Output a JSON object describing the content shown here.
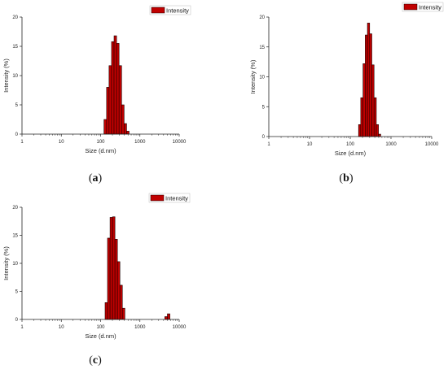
{
  "chart_data": [
    {
      "type": "bar",
      "panel_label_open": "(",
      "panel_label_letter": "a",
      "panel_label_close": ")",
      "xlabel": "Size (d.nm)",
      "ylabel": "Intensity (%)",
      "xscale": "log",
      "xlim": [
        1,
        10000
      ],
      "ylim": [
        0,
        20
      ],
      "xticks": [
        1,
        10,
        100,
        1000,
        10000
      ],
      "xtick_labels": [
        "1",
        "10",
        "100",
        "1000",
        "10000"
      ],
      "yticks": [
        0,
        5,
        10,
        15,
        20
      ],
      "ytick_labels": [
        "0",
        "5",
        "10",
        "15",
        "20"
      ],
      "legend": "top-right",
      "grid": false,
      "series": [
        {
          "name": "Intensity",
          "color": "#c00000",
          "bins": [
            {
              "x0": 122,
              "x1": 142,
              "y": 2.5
            },
            {
              "x0": 142,
              "x1": 164,
              "y": 8.0
            },
            {
              "x0": 164,
              "x1": 190,
              "y": 11.7
            },
            {
              "x0": 190,
              "x1": 220,
              "y": 15.8
            },
            {
              "x0": 220,
              "x1": 255,
              "y": 16.8
            },
            {
              "x0": 255,
              "x1": 295,
              "y": 15.5
            },
            {
              "x0": 295,
              "x1": 342,
              "y": 11.7
            },
            {
              "x0": 342,
              "x1": 396,
              "y": 5.0
            },
            {
              "x0": 396,
              "x1": 459,
              "y": 1.8
            },
            {
              "x0": 459,
              "x1": 531,
              "y": 0.5
            }
          ]
        }
      ]
    },
    {
      "type": "bar",
      "panel_label_open": "(",
      "panel_label_letter": "b",
      "panel_label_close": ")",
      "xlabel": "Size (d.nm)",
      "ylabel": "Intensity (%)",
      "xscale": "log",
      "xlim": [
        1,
        10000
      ],
      "ylim": [
        0,
        20
      ],
      "xticks": [
        1,
        10,
        100,
        1000,
        10000
      ],
      "xtick_labels": [
        "1",
        "10",
        "100",
        "1000",
        "10000"
      ],
      "yticks": [
        0,
        5,
        10,
        15,
        20
      ],
      "ytick_labels": [
        "0",
        "5",
        "10",
        "15",
        "20"
      ],
      "legend": "top-right",
      "grid": false,
      "series": [
        {
          "name": "Intensity",
          "color": "#c00000",
          "bins": [
            {
              "x0": 160,
              "x1": 181,
              "y": 2.0
            },
            {
              "x0": 181,
              "x1": 206,
              "y": 6.5
            },
            {
              "x0": 206,
              "x1": 233,
              "y": 12.2
            },
            {
              "x0": 233,
              "x1": 264,
              "y": 17.0
            },
            {
              "x0": 264,
              "x1": 299,
              "y": 19.0
            },
            {
              "x0": 299,
              "x1": 339,
              "y": 17.2
            },
            {
              "x0": 339,
              "x1": 384,
              "y": 12.0
            },
            {
              "x0": 384,
              "x1": 436,
              "y": 6.5
            },
            {
              "x0": 436,
              "x1": 494,
              "y": 2.0
            },
            {
              "x0": 494,
              "x1": 560,
              "y": 0.4
            }
          ]
        }
      ]
    },
    {
      "type": "bar",
      "panel_label_open": "(",
      "panel_label_letter": "c",
      "panel_label_close": ")",
      "xlabel": "Size (d.nm)",
      "ylabel": "Intensity (%)",
      "xscale": "log",
      "xlim": [
        1,
        10000
      ],
      "ylim": [
        0,
        20
      ],
      "xticks": [
        1,
        10,
        100,
        1000,
        10000
      ],
      "xtick_labels": [
        "1",
        "10",
        "100",
        "1000",
        "10000"
      ],
      "yticks": [
        0,
        5,
        10,
        15,
        20
      ],
      "ytick_labels": [
        "0",
        "5",
        "10",
        "15",
        "20"
      ],
      "legend": "top-right",
      "grid": false,
      "series": [
        {
          "name": "Intensity",
          "color": "#c00000",
          "bins": [
            {
              "x0": 130,
              "x1": 150,
              "y": 3.0
            },
            {
              "x0": 150,
              "x1": 174,
              "y": 14.5
            },
            {
              "x0": 174,
              "x1": 201,
              "y": 18.2
            },
            {
              "x0": 201,
              "x1": 232,
              "y": 18.3
            },
            {
              "x0": 232,
              "x1": 268,
              "y": 14.3
            },
            {
              "x0": 268,
              "x1": 310,
              "y": 10.3
            },
            {
              "x0": 310,
              "x1": 358,
              "y": 6.1
            },
            {
              "x0": 358,
              "x1": 414,
              "y": 2.0
            },
            {
              "x0": 4300,
              "x1": 5000,
              "y": 0.5
            },
            {
              "x0": 5000,
              "x1": 5800,
              "y": 1.0
            }
          ]
        }
      ]
    }
  ]
}
